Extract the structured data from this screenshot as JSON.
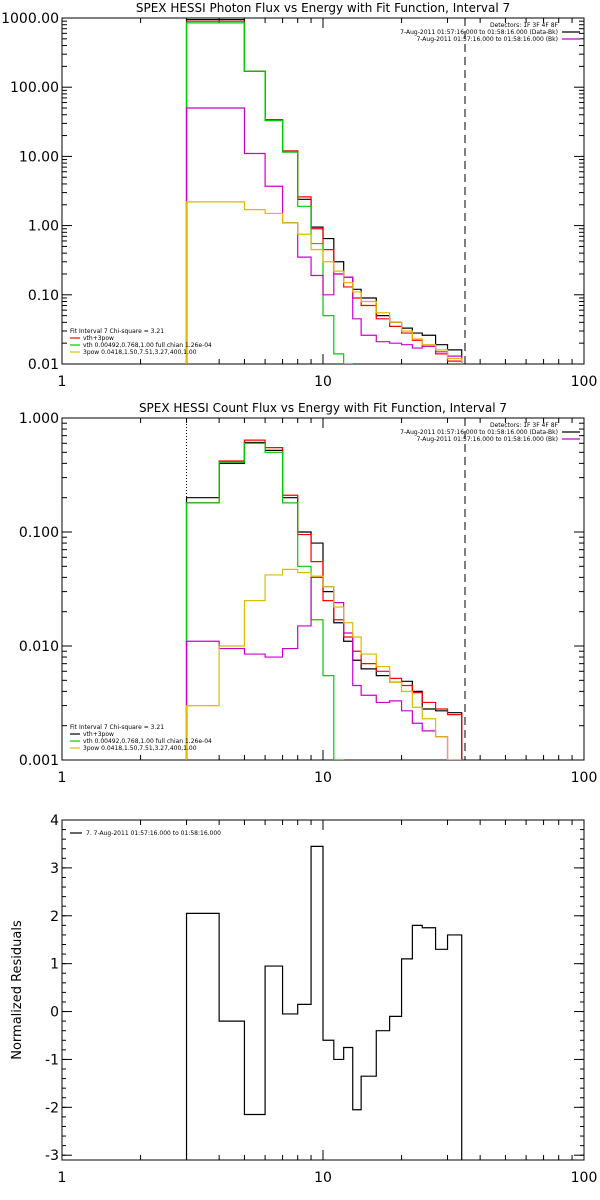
{
  "chart_data": [
    {
      "type": "line",
      "title": "SPEX HESSI Photon Flux vs Energy with Fit Function, Interval 7",
      "xscale": "log",
      "yscale": "log",
      "xlim": [
        1,
        100
      ],
      "ylim": [
        0.01,
        1000
      ],
      "xticks": [
        1,
        10,
        100
      ],
      "xtick_labels": [
        "1",
        "10",
        "100"
      ],
      "yticks": [
        0.01,
        0.1,
        1,
        10,
        100,
        1000
      ],
      "ytick_labels": [
        "0.01",
        "0.10",
        "1.00",
        "10.00",
        "100.00",
        "1000.00"
      ],
      "ylabel": "",
      "dotted_vline": 3,
      "dashed_vline": 35,
      "legend_top": {
        "position": "top-right",
        "lines": [
          "Detectors: 1F 3F 4F 8F",
          "7-Aug-2011 01:57:16.000 to 01:58:16.000 (Data-Bk)",
          "7-Aug-2011 01:57:16.000 to 01:58:16.000 (Bk)"
        ],
        "colors": [
          "",
          "#000000",
          "#cc00cc"
        ]
      },
      "legend_bottom": {
        "position": "bottom-left",
        "header": "Fit Interval 7   Chi-square = 3.21",
        "lines": [
          "vth+3pow",
          "vth 0.00492,0.768,1.00   full chian 1.26e-04",
          "3pow 0.0418,1.50,7.51,3.27,400,1.00"
        ],
        "colors": [
          "#ff0000",
          "#00cc00",
          "#ddbb00"
        ]
      },
      "edges": [
        3,
        4,
        5,
        6,
        7,
        8,
        9,
        10,
        11,
        12,
        13,
        14,
        16,
        18,
        20,
        22,
        24,
        27,
        30,
        34
      ],
      "series": [
        {
          "color": "#000000",
          "values": [
            950,
            950,
            170,
            33,
            12,
            2.4,
            0.95,
            0.65,
            0.3,
            0.18,
            0.12,
            0.09,
            0.05,
            0.04,
            0.033,
            0.028,
            0.026,
            0.019,
            0.016
          ]
        },
        {
          "color": "#ff0000",
          "values": [
            900,
            900,
            170,
            34,
            12,
            2.6,
            0.9,
            0.45,
            0.2,
            0.13,
            0.09,
            0.07,
            0.045,
            0.035,
            0.028,
            0.022,
            0.018,
            0.014,
            0.011
          ]
        },
        {
          "color": "#00cc00",
          "values": [
            850,
            850,
            170,
            33,
            11.5,
            1.9,
            0.55,
            0.05,
            0.014,
            0.001
          ]
        },
        {
          "color": "#cc00cc",
          "values": [
            50,
            50,
            11,
            3.7,
            1.1,
            0.35,
            0.19,
            0.1,
            0.2,
            0.18,
            0.045,
            0.026,
            0.021,
            0.02,
            0.019,
            0.017,
            0.018,
            0.015,
            0.013
          ]
        },
        {
          "color": "#ddbb00",
          "values": [
            2.2,
            2.2,
            1.7,
            1.5,
            1.1,
            0.75,
            0.45,
            0.3,
            0.22,
            0.15,
            0.11,
            0.08,
            0.055,
            0.04,
            0.03,
            0.023,
            0.019,
            0.016,
            0.012
          ]
        }
      ]
    },
    {
      "type": "line",
      "title": "SPEX HESSI Count Flux vs Energy with Fit Function, Interval 7",
      "xscale": "log",
      "yscale": "log",
      "xlim": [
        1,
        100
      ],
      "ylim": [
        0.001,
        1
      ],
      "xticks": [
        1,
        10,
        100
      ],
      "xtick_labels": [
        "1",
        "10",
        "100"
      ],
      "yticks": [
        0.001,
        0.01,
        0.1,
        1
      ],
      "ytick_labels": [
        "0.001",
        "0.010",
        "0.100",
        "1.000"
      ],
      "ylabel": "",
      "dotted_vline": 3,
      "dashed_vline": 35,
      "legend_top": {
        "position": "top-right",
        "lines": [
          "Detectors: 1F 3F 4F 8F",
          "7-Aug-2011 01:57:16.000 to 01:58:16.000 (Data-Bk)",
          "7-Aug-2011 01:57:16.000 to 01:58:16.000 (Bk)"
        ],
        "colors": [
          "",
          "#000000",
          "#cc00cc"
        ]
      },
      "legend_bottom": {
        "position": "bottom-left",
        "header": "Fit Interval 7   Chi-square = 3.21",
        "lines": [
          "vth+3pow",
          "vth 0.00492,0.768,1.00   full chian 1.26e-04",
          "3pow 0.0418,1.50,7.51,3.27,400,1.00"
        ],
        "colors": [
          "#000000",
          "#00cc00",
          "#ddbb00"
        ]
      },
      "edges": [
        3,
        4,
        5,
        6,
        7,
        8,
        9,
        10,
        11,
        12,
        13,
        14,
        16,
        18,
        20,
        22,
        24,
        27,
        30,
        34
      ],
      "series": [
        {
          "color": "#000000",
          "values": [
            0.2,
            0.4,
            0.61,
            0.52,
            0.2,
            0.1,
            0.08,
            0.03,
            0.016,
            0.011,
            0.0075,
            0.0063,
            0.0055,
            0.0048,
            0.0049,
            0.004,
            0.0028,
            0.0027,
            0.0026
          ]
        },
        {
          "color": "#ff0000",
          "values": [
            0.18,
            0.42,
            0.64,
            0.55,
            0.21,
            0.095,
            0.055,
            0.025,
            0.017,
            0.012,
            0.009,
            0.007,
            0.006,
            0.0052,
            0.0045,
            0.0039,
            0.0032,
            0.0028,
            0.0025
          ]
        },
        {
          "color": "#00cc00",
          "values": [
            0.18,
            0.41,
            0.6,
            0.5,
            0.18,
            0.05,
            0.017,
            0.0055,
            0.001
          ]
        },
        {
          "color": "#cc00cc",
          "values": [
            0.011,
            0.0095,
            0.0085,
            0.008,
            0.0095,
            0.015,
            0.04,
            0.033,
            0.024,
            0.013,
            0.0045,
            0.0037,
            0.0032,
            0.0033,
            0.0027,
            0.0021,
            0.0018,
            0.0016,
            0.001
          ]
        },
        {
          "color": "#ddbb00",
          "values": [
            0.003,
            0.01,
            0.025,
            0.042,
            0.047,
            0.044,
            0.041,
            0.033,
            0.022,
            0.016,
            0.012,
            0.0085,
            0.0066,
            0.0048,
            0.004,
            0.0029,
            0.0023,
            0.0016,
            0.001
          ]
        }
      ]
    },
    {
      "type": "line",
      "title": "",
      "xscale": "log",
      "yscale": "linear",
      "xlim": [
        1,
        100
      ],
      "ylim": [
        -3.1,
        4
      ],
      "xticks": [
        1,
        10,
        100
      ],
      "xtick_labels": [
        "1",
        "10",
        "100"
      ],
      "yticks": [
        -3,
        -2,
        -1,
        0,
        1,
        2,
        3,
        4
      ],
      "ytick_labels": [
        "-3",
        "-2",
        "-1",
        "0",
        "1",
        "2",
        "3",
        "4"
      ],
      "ylabel": "Normalized Residuals",
      "legend_top": {
        "position": "top-left",
        "lines": [
          "7.  7-Aug-2011 01:57:16.000 to 01:58:16.000"
        ],
        "colors": [
          "#000000"
        ]
      },
      "edges": [
        3,
        4,
        5,
        6,
        7,
        8,
        9,
        10,
        11,
        12,
        13,
        14,
        16,
        18,
        20,
        22,
        24,
        27,
        30,
        34
      ],
      "series": [
        {
          "color": "#000000",
          "values": [
            2.05,
            -0.2,
            -2.15,
            0.95,
            -0.05,
            0.15,
            3.45,
            -0.6,
            -1.0,
            -0.75,
            -2.05,
            -1.35,
            -0.4,
            -0.1,
            1.1,
            1.8,
            1.75,
            1.3,
            1.6
          ]
        }
      ]
    }
  ]
}
